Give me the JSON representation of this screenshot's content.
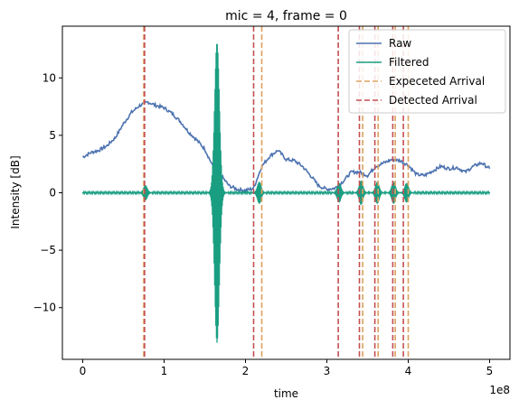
{
  "chart_data": {
    "type": "line",
    "title": "mic = 4, frame = 0",
    "xlabel": "time",
    "ylabel": "Intensity [dB]",
    "x_offset_label": "1e8",
    "xlim": [
      -2.5,
      52.5
    ],
    "ylim": [
      -14.5,
      14.5
    ],
    "x_ticks": [
      0,
      10,
      20,
      30,
      40,
      50
    ],
    "x_tick_labels": [
      "0",
      "1",
      "2",
      "3",
      "4",
      "5"
    ],
    "y_ticks": [
      -10,
      -5,
      0,
      5,
      10
    ],
    "y_tick_labels": [
      "−10",
      "−5",
      "0",
      "5",
      "10"
    ],
    "legend_position": "top-right",
    "series": [
      {
        "name": "Raw",
        "color": "#4c72b0",
        "x": [
          0,
          1,
          2,
          3,
          4,
          5,
          6,
          7,
          8,
          9,
          10,
          11,
          12,
          13,
          14,
          15,
          16,
          16.5,
          17,
          18,
          19,
          20,
          21,
          22,
          23,
          24,
          25,
          26,
          27,
          28,
          29,
          30,
          31,
          32,
          33,
          34,
          35,
          36,
          37,
          38,
          39,
          40,
          41,
          42,
          43,
          44,
          45,
          46,
          47,
          48,
          49,
          50
        ],
        "y": [
          3.1,
          3.5,
          3.7,
          4.1,
          4.8,
          6.0,
          7.0,
          7.6,
          7.9,
          7.6,
          7.4,
          6.9,
          6.2,
          5.3,
          4.6,
          3.8,
          2.3,
          1.2,
          1.5,
          0.6,
          0.3,
          0.2,
          0.4,
          2.3,
          3.2,
          3.7,
          2.9,
          2.8,
          2.3,
          1.5,
          0.6,
          0.3,
          0.4,
          1.0,
          1.8,
          1.8,
          1.5,
          2.3,
          2.6,
          2.9,
          2.8,
          2.4,
          1.6,
          1.5,
          1.9,
          2.3,
          2.1,
          2.2,
          1.8,
          2.3,
          2.6,
          2.1
        ]
      },
      {
        "name": "Filtered",
        "color": "#1a9e82",
        "baseline": 0.0,
        "bursts": [
          {
            "x": 7.7,
            "amp": 0.6
          },
          {
            "x": 16.5,
            "amp": 13.0
          },
          {
            "x": 21.7,
            "amp": 0.9
          },
          {
            "x": 31.5,
            "amp": 0.8
          },
          {
            "x": 34.2,
            "amp": 1.0
          },
          {
            "x": 36.2,
            "amp": 0.9
          },
          {
            "x": 38.2,
            "amp": 0.9
          },
          {
            "x": 39.8,
            "amp": 0.8
          }
        ]
      }
    ],
    "vlines": [
      {
        "name": "Expeceted Arrival",
        "color": "#dda15e",
        "x": [
          7.5,
          22.0,
          34.4,
          36.3,
          38.4,
          40.0
        ]
      },
      {
        "name": "Detected Arrival",
        "color": "#c44e52",
        "x": [
          7.6,
          21.0,
          31.4,
          34.0,
          35.9,
          38.1,
          39.4
        ]
      }
    ]
  }
}
